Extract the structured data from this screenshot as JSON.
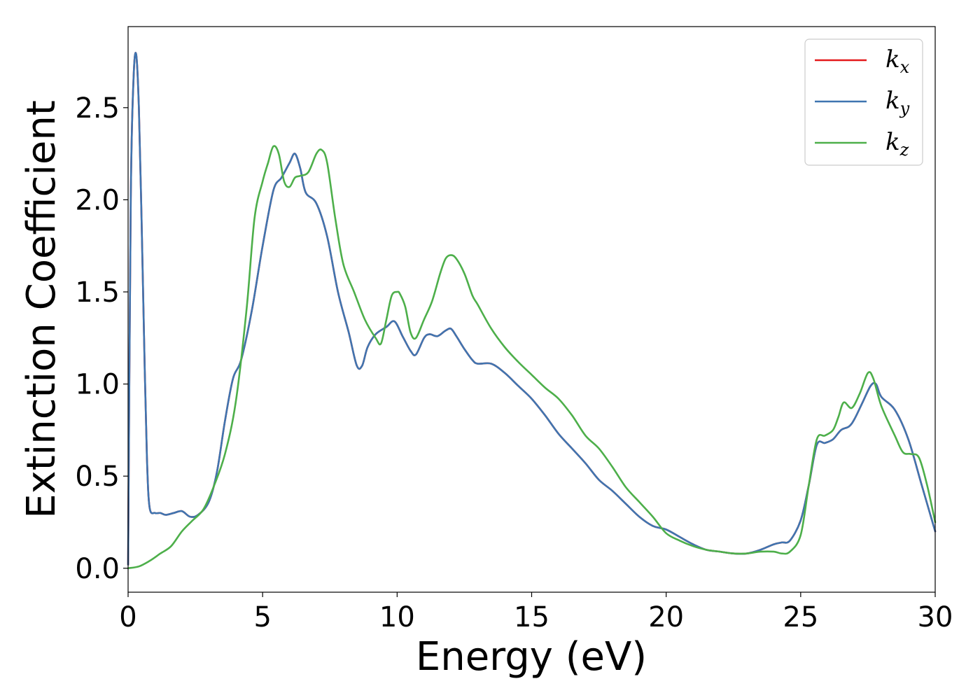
{
  "chart_data": {
    "type": "line",
    "xlabel": "Energy (eV)",
    "ylabel": "Extinction Coefficient",
    "xlim": [
      0,
      30
    ],
    "ylim": [
      -0.13,
      2.94
    ],
    "xticks": [
      0,
      5,
      10,
      15,
      20,
      25,
      30
    ],
    "xtick_labels": [
      "0",
      "5",
      "10",
      "15",
      "20",
      "25",
      "30"
    ],
    "yticks": [
      0.0,
      0.5,
      1.0,
      1.5,
      2.0,
      2.5
    ],
    "ytick_labels": [
      "0.0",
      "0.5",
      "1.0",
      "1.5",
      "2.0",
      "2.5"
    ],
    "grid": false,
    "legend_position": "top-right",
    "series": [
      {
        "name": "k",
        "subscript": "x",
        "color": "#e41a1c",
        "x": [
          0,
          0.1,
          0.2,
          0.3,
          0.4,
          0.5,
          0.6,
          0.7,
          0.8,
          1.0,
          1.2,
          1.4,
          1.7,
          2.0,
          2.3,
          2.6,
          3.0,
          3.3,
          3.6,
          3.9,
          4.2,
          4.6,
          5.0,
          5.4,
          5.7,
          6.0,
          6.2,
          6.4,
          6.6,
          7.0,
          7.4,
          7.8,
          8.2,
          8.5,
          8.7,
          8.9,
          9.2,
          9.6,
          9.9,
          10.2,
          10.5,
          10.7,
          11.0,
          11.2,
          11.5,
          11.8,
          12.0,
          12.2,
          12.5,
          12.8,
          13.0,
          13.5,
          14.0,
          14.5,
          15.0,
          15.5,
          16.0,
          16.5,
          17.0,
          17.5,
          18.0,
          18.5,
          19.0,
          19.5,
          20.0,
          20.5,
          21.0,
          21.5,
          22.0,
          22.5,
          23.0,
          23.5,
          24.0,
          24.3,
          24.6,
          25.0,
          25.3,
          25.6,
          25.9,
          26.2,
          26.5,
          26.8,
          27.0,
          27.3,
          27.6,
          27.8,
          28.0,
          28.5,
          29.0,
          29.5,
          30.0
        ],
        "y": [
          0.02,
          2.0,
          2.65,
          2.79,
          2.5,
          1.9,
          1.2,
          0.6,
          0.33,
          0.3,
          0.3,
          0.29,
          0.3,
          0.31,
          0.28,
          0.29,
          0.36,
          0.52,
          0.8,
          1.03,
          1.13,
          1.4,
          1.75,
          2.05,
          2.12,
          2.2,
          2.25,
          2.17,
          2.04,
          1.98,
          1.8,
          1.5,
          1.28,
          1.1,
          1.1,
          1.2,
          1.27,
          1.31,
          1.34,
          1.26,
          1.18,
          1.16,
          1.25,
          1.27,
          1.26,
          1.29,
          1.3,
          1.26,
          1.19,
          1.13,
          1.11,
          1.11,
          1.06,
          0.99,
          0.92,
          0.83,
          0.73,
          0.65,
          0.57,
          0.48,
          0.42,
          0.35,
          0.28,
          0.23,
          0.21,
          0.17,
          0.13,
          0.1,
          0.09,
          0.08,
          0.08,
          0.1,
          0.13,
          0.14,
          0.15,
          0.26,
          0.45,
          0.67,
          0.68,
          0.7,
          0.75,
          0.77,
          0.81,
          0.9,
          0.99,
          1.0,
          0.93,
          0.86,
          0.7,
          0.45,
          0.2
        ]
      },
      {
        "name": "k",
        "subscript": "y",
        "color": "#3f75b0",
        "x": [
          0,
          0.1,
          0.2,
          0.3,
          0.4,
          0.5,
          0.6,
          0.7,
          0.8,
          1.0,
          1.2,
          1.4,
          1.7,
          2.0,
          2.3,
          2.6,
          3.0,
          3.3,
          3.6,
          3.9,
          4.2,
          4.6,
          5.0,
          5.4,
          5.7,
          6.0,
          6.2,
          6.4,
          6.6,
          7.0,
          7.4,
          7.8,
          8.2,
          8.5,
          8.7,
          8.9,
          9.2,
          9.6,
          9.9,
          10.2,
          10.5,
          10.7,
          11.0,
          11.2,
          11.5,
          11.8,
          12.0,
          12.2,
          12.5,
          12.8,
          13.0,
          13.5,
          14.0,
          14.5,
          15.0,
          15.5,
          16.0,
          16.5,
          17.0,
          17.5,
          18.0,
          18.5,
          19.0,
          19.5,
          20.0,
          20.5,
          21.0,
          21.5,
          22.0,
          22.5,
          23.0,
          23.5,
          24.0,
          24.3,
          24.6,
          25.0,
          25.3,
          25.6,
          25.9,
          26.2,
          26.5,
          26.8,
          27.0,
          27.3,
          27.6,
          27.8,
          28.0,
          28.5,
          29.0,
          29.5,
          30.0
        ],
        "y": [
          0.02,
          2.0,
          2.65,
          2.79,
          2.5,
          1.9,
          1.2,
          0.6,
          0.33,
          0.3,
          0.3,
          0.29,
          0.3,
          0.31,
          0.28,
          0.29,
          0.36,
          0.52,
          0.8,
          1.03,
          1.13,
          1.4,
          1.75,
          2.05,
          2.12,
          2.2,
          2.25,
          2.17,
          2.04,
          1.98,
          1.8,
          1.5,
          1.28,
          1.1,
          1.1,
          1.2,
          1.27,
          1.31,
          1.34,
          1.26,
          1.18,
          1.16,
          1.25,
          1.27,
          1.26,
          1.29,
          1.3,
          1.26,
          1.19,
          1.13,
          1.11,
          1.11,
          1.06,
          0.99,
          0.92,
          0.83,
          0.73,
          0.65,
          0.57,
          0.48,
          0.42,
          0.35,
          0.28,
          0.23,
          0.21,
          0.17,
          0.13,
          0.1,
          0.09,
          0.08,
          0.08,
          0.1,
          0.13,
          0.14,
          0.15,
          0.26,
          0.45,
          0.67,
          0.68,
          0.7,
          0.75,
          0.77,
          0.81,
          0.9,
          0.99,
          1.0,
          0.93,
          0.86,
          0.7,
          0.45,
          0.2
        ]
      },
      {
        "name": "k",
        "subscript": "z",
        "color": "#4daf4a",
        "x": [
          0,
          0.4,
          0.8,
          1.2,
          1.6,
          2.0,
          2.4,
          2.8,
          3.2,
          3.6,
          4.0,
          4.4,
          4.7,
          5.0,
          5.2,
          5.4,
          5.6,
          5.8,
          6.0,
          6.2,
          6.4,
          6.7,
          7.0,
          7.2,
          7.4,
          7.7,
          8.0,
          8.4,
          8.8,
          9.2,
          9.4,
          9.6,
          9.8,
          10.0,
          10.1,
          10.3,
          10.5,
          10.7,
          11.0,
          11.3,
          11.6,
          11.8,
          12.0,
          12.2,
          12.5,
          12.8,
          13.0,
          13.5,
          14.0,
          14.5,
          15.0,
          15.5,
          16.0,
          16.5,
          17.0,
          17.5,
          18.0,
          18.5,
          19.0,
          19.5,
          20.0,
          20.5,
          21.0,
          21.5,
          22.0,
          22.5,
          23.0,
          23.5,
          24.0,
          24.3,
          24.6,
          25.0,
          25.3,
          25.6,
          25.9,
          26.2,
          26.4,
          26.6,
          26.9,
          27.2,
          27.5,
          27.7,
          28.0,
          28.5,
          28.8,
          29.1,
          29.4,
          29.7,
          30.0
        ],
        "y": [
          0.0,
          0.01,
          0.04,
          0.08,
          0.12,
          0.2,
          0.26,
          0.32,
          0.45,
          0.62,
          0.9,
          1.4,
          1.9,
          2.1,
          2.2,
          2.29,
          2.25,
          2.1,
          2.07,
          2.12,
          2.13,
          2.15,
          2.25,
          2.27,
          2.2,
          1.9,
          1.65,
          1.5,
          1.35,
          1.25,
          1.22,
          1.35,
          1.48,
          1.5,
          1.49,
          1.42,
          1.28,
          1.25,
          1.35,
          1.45,
          1.6,
          1.68,
          1.7,
          1.68,
          1.6,
          1.48,
          1.43,
          1.3,
          1.2,
          1.12,
          1.05,
          0.98,
          0.92,
          0.83,
          0.72,
          0.65,
          0.55,
          0.44,
          0.36,
          0.28,
          0.19,
          0.15,
          0.12,
          0.1,
          0.09,
          0.08,
          0.08,
          0.09,
          0.09,
          0.08,
          0.09,
          0.18,
          0.45,
          0.7,
          0.72,
          0.75,
          0.82,
          0.9,
          0.87,
          0.95,
          1.06,
          1.03,
          0.88,
          0.72,
          0.63,
          0.62,
          0.6,
          0.45,
          0.25
        ]
      }
    ]
  }
}
